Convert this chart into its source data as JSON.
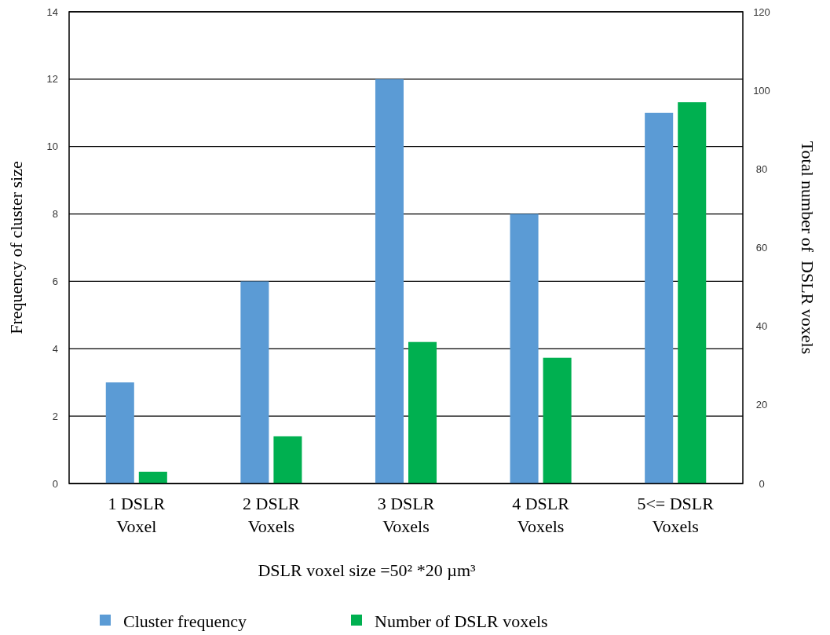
{
  "chart_data": {
    "type": "bar",
    "xlabel": "DSLR voxel size =50² *20 µm³",
    "ylabel": "Frequency of cluster size",
    "y2label": "Total number of  DSLR voxels",
    "categories": [
      "1 DSLR\nVoxel",
      "2 DSLR\nVoxels",
      "3 DSLR\nVoxels",
      "4 DSLR\nVoxels",
      "5<= DSLR\nVoxels"
    ],
    "series": [
      {
        "name": "Cluster frequency",
        "color": "#5b9bd5",
        "values": [
          3,
          6,
          12,
          8,
          11
        ]
      },
      {
        "name": "Number of DSLR voxels",
        "color": "#00b050",
        "axis": "y2",
        "values": [
          3,
          12,
          36,
          32,
          97
        ]
      }
    ],
    "ylim": [
      0,
      14
    ],
    "yticks": [
      0,
      2,
      4,
      6,
      8,
      10,
      12,
      14
    ],
    "y2lim": [
      0,
      120
    ],
    "y2ticks": [
      0,
      20,
      40,
      60,
      80,
      100,
      120
    ],
    "grid": "y",
    "legend": "bottom"
  }
}
